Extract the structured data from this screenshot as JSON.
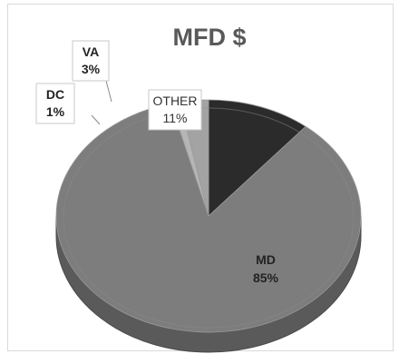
{
  "chart_data": {
    "type": "pie",
    "title": "MFD $",
    "slices": [
      {
        "label": "OTHER",
        "value": 11,
        "value_label": "11%",
        "color": "#2b2b2b"
      },
      {
        "label": "MD",
        "value": 85,
        "value_label": "85%",
        "color": "#7d7d7d"
      },
      {
        "label": "DC",
        "value": 1,
        "value_label": "1%",
        "color": "#b5b5b5"
      },
      {
        "label": "VA",
        "value": 3,
        "value_label": "3%",
        "color": "#a3a3a3"
      }
    ],
    "style": "3d-tilted",
    "legend": "none"
  }
}
